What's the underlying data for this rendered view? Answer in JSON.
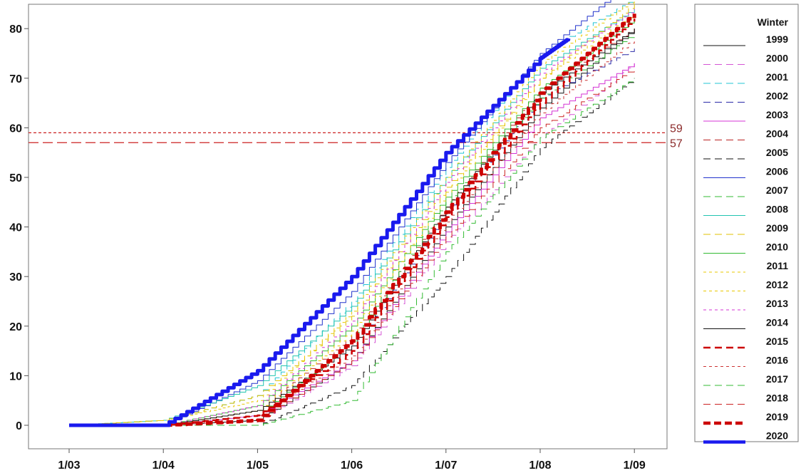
{
  "chart_data": {
    "type": "line",
    "title": "",
    "xlabel": "",
    "ylabel": "",
    "x_ticks": [
      "1/03",
      "1/04",
      "1/05",
      "1/06",
      "1/07",
      "1/08",
      "1/09"
    ],
    "y_ticks": [
      0,
      10,
      20,
      30,
      40,
      50,
      60,
      70,
      80
    ],
    "ylim": [
      -5,
      84
    ],
    "reference_lines": [
      {
        "value": 59,
        "label": "59",
        "color": "#cc2222",
        "dash": "short"
      },
      {
        "value": 57,
        "label": "57",
        "color": "#cc2222",
        "dash": "long"
      }
    ],
    "legend": {
      "title": "Winter",
      "position": "right"
    },
    "series": [
      {
        "name": "1999",
        "color": "#111111",
        "dash": "solid",
        "width": 1,
        "points": [
          [
            "1/03",
            0
          ],
          [
            "1/04",
            0
          ],
          [
            "1/05",
            1
          ],
          [
            "1/06",
            13
          ],
          [
            "1/07",
            40
          ],
          [
            "1/08",
            64
          ],
          [
            "1/09",
            80
          ]
        ]
      },
      {
        "name": "2000",
        "color": "#d455d4",
        "dash": "dashed",
        "width": 1,
        "points": [
          [
            "1/03",
            0
          ],
          [
            "1/04",
            0
          ],
          [
            "1/05",
            1
          ],
          [
            "1/06",
            12
          ],
          [
            "1/07",
            37
          ],
          [
            "1/08",
            58
          ],
          [
            "1/09",
            73
          ]
        ]
      },
      {
        "name": "2001",
        "color": "#22c4d4",
        "dash": "dashed",
        "width": 1,
        "points": [
          [
            "1/03",
            0
          ],
          [
            "1/04",
            1
          ],
          [
            "1/05",
            6
          ],
          [
            "1/06",
            25
          ],
          [
            "1/07",
            52
          ],
          [
            "1/08",
            75
          ],
          [
            "1/09",
            86
          ]
        ]
      },
      {
        "name": "2002",
        "color": "#2a2aa8",
        "dash": "dashed",
        "width": 1,
        "points": [
          [
            "1/03",
            0
          ],
          [
            "1/04",
            0
          ],
          [
            "1/05",
            2
          ],
          [
            "1/06",
            15
          ],
          [
            "1/07",
            43
          ],
          [
            "1/08",
            66
          ],
          [
            "1/09",
            76
          ]
        ]
      },
      {
        "name": "2003",
        "color": "#d433d4",
        "dash": "solid",
        "width": 1,
        "points": [
          [
            "1/03",
            0
          ],
          [
            "1/04",
            0
          ],
          [
            "1/05",
            2
          ],
          [
            "1/06",
            13
          ],
          [
            "1/07",
            39
          ],
          [
            "1/08",
            62
          ],
          [
            "1/09",
            73
          ]
        ]
      },
      {
        "name": "2004",
        "color": "#bb2222",
        "dash": "dashed",
        "width": 1,
        "points": [
          [
            "1/03",
            0
          ],
          [
            "1/04",
            0
          ],
          [
            "1/05",
            3
          ],
          [
            "1/06",
            18
          ],
          [
            "1/07",
            44
          ],
          [
            "1/08",
            68
          ],
          [
            "1/09",
            80
          ]
        ]
      },
      {
        "name": "2005",
        "color": "#111111",
        "dash": "dashed",
        "width": 1,
        "points": [
          [
            "1/03",
            0
          ],
          [
            "1/04",
            0
          ],
          [
            "1/05",
            0
          ],
          [
            "1/06",
            8
          ],
          [
            "1/07",
            30
          ],
          [
            "1/08",
            56
          ],
          [
            "1/09",
            70
          ]
        ]
      },
      {
        "name": "2006",
        "color": "#2233cc",
        "dash": "solid",
        "width": 1,
        "points": [
          [
            "1/03",
            0
          ],
          [
            "1/04",
            0
          ],
          [
            "1/05",
            9
          ],
          [
            "1/06",
            27
          ],
          [
            "1/07",
            53
          ],
          [
            "1/08",
            75
          ],
          [
            "1/09",
            90
          ]
        ]
      },
      {
        "name": "2007",
        "color": "#33bb33",
        "dash": "dashed",
        "width": 1,
        "points": [
          [
            "1/03",
            0
          ],
          [
            "1/04",
            0
          ],
          [
            "1/05",
            0
          ],
          [
            "1/06",
            5
          ],
          [
            "1/07",
            35
          ],
          [
            "1/08",
            58
          ],
          [
            "1/09",
            70
          ]
        ]
      },
      {
        "name": "2008",
        "color": "#22c4b0",
        "dash": "solid",
        "width": 1,
        "points": [
          [
            "1/03",
            0
          ],
          [
            "1/04",
            1
          ],
          [
            "1/05",
            8
          ],
          [
            "1/06",
            24
          ],
          [
            "1/07",
            50
          ],
          [
            "1/08",
            72
          ],
          [
            "1/09",
            84
          ]
        ]
      },
      {
        "name": "2009",
        "color": "#e0c000",
        "dash": "dashed",
        "width": 1,
        "points": [
          [
            "1/03",
            0
          ],
          [
            "1/04",
            1
          ],
          [
            "1/05",
            6
          ],
          [
            "1/06",
            22
          ],
          [
            "1/07",
            48
          ],
          [
            "1/08",
            70
          ],
          [
            "1/09",
            85
          ]
        ]
      },
      {
        "name": "2010",
        "color": "#33bb33",
        "dash": "solid",
        "width": 1,
        "points": [
          [
            "1/03",
            0
          ],
          [
            "1/04",
            0
          ],
          [
            "1/05",
            4
          ],
          [
            "1/06",
            20
          ],
          [
            "1/07",
            46
          ],
          [
            "1/08",
            68
          ],
          [
            "1/09",
            82
          ]
        ]
      },
      {
        "name": "2011",
        "color": "#e8c800",
        "dash": "dotted",
        "width": 1,
        "points": [
          [
            "1/03",
            0
          ],
          [
            "1/04",
            1
          ],
          [
            "1/05",
            5
          ],
          [
            "1/06",
            23
          ],
          [
            "1/07",
            50
          ],
          [
            "1/08",
            73
          ],
          [
            "1/09",
            86
          ]
        ]
      },
      {
        "name": "2012",
        "color": "#e8c800",
        "dash": "dotted",
        "width": 1,
        "points": [
          [
            "1/03",
            0
          ],
          [
            "1/04",
            0
          ],
          [
            "1/05",
            3
          ],
          [
            "1/06",
            19
          ],
          [
            "1/07",
            47
          ],
          [
            "1/08",
            70
          ],
          [
            "1/09",
            83
          ]
        ]
      },
      {
        "name": "2013",
        "color": "#d433d4",
        "dash": "dotted",
        "width": 1,
        "points": [
          [
            "1/03",
            0
          ],
          [
            "1/04",
            0
          ],
          [
            "1/05",
            4
          ],
          [
            "1/06",
            21
          ],
          [
            "1/07",
            49
          ],
          [
            "1/08",
            71
          ],
          [
            "1/09",
            84
          ]
        ]
      },
      {
        "name": "2014",
        "color": "#111111",
        "dash": "solid",
        "width": 1,
        "points": [
          [
            "1/03",
            0
          ],
          [
            "1/04",
            0
          ],
          [
            "1/05",
            3
          ],
          [
            "1/06",
            16
          ],
          [
            "1/07",
            44
          ],
          [
            "1/08",
            67
          ],
          [
            "1/09",
            80
          ]
        ]
      },
      {
        "name": "2015",
        "color": "#cc0000",
        "dash": "dashed",
        "width": 2.5,
        "points": [
          [
            "1/03",
            0
          ],
          [
            "1/04",
            0
          ],
          [
            "1/05",
            2
          ],
          [
            "1/06",
            15
          ],
          [
            "1/07",
            42
          ],
          [
            "1/08",
            65
          ],
          [
            "1/09",
            82
          ]
        ]
      },
      {
        "name": "2016",
        "color": "#cc3333",
        "dash": "dotted",
        "width": 1,
        "points": [
          [
            "1/03",
            0
          ],
          [
            "1/04",
            0
          ],
          [
            "1/05",
            2
          ],
          [
            "1/06",
            14
          ],
          [
            "1/07",
            41
          ],
          [
            "1/08",
            63
          ],
          [
            "1/09",
            78
          ]
        ]
      },
      {
        "name": "2017",
        "color": "#33bb33",
        "dash": "dashed",
        "width": 1,
        "points": [
          [
            "1/03",
            0
          ],
          [
            "1/04",
            0
          ],
          [
            "1/05",
            2
          ],
          [
            "1/06",
            17
          ],
          [
            "1/07",
            45
          ],
          [
            "1/08",
            66
          ],
          [
            "1/09",
            79
          ]
        ]
      },
      {
        "name": "2018",
        "color": "#cc2222",
        "dash": "dashed",
        "width": 1,
        "points": [
          [
            "1/03",
            0
          ],
          [
            "1/04",
            0
          ],
          [
            "1/05",
            1
          ],
          [
            "1/06",
            13
          ],
          [
            "1/07",
            38
          ],
          [
            "1/08",
            60
          ],
          [
            "1/09",
            72
          ]
        ]
      },
      {
        "name": "2019",
        "color": "#cc0000",
        "dash": "dotted",
        "width": 5,
        "points": [
          [
            "1/03",
            0
          ],
          [
            "1/04",
            0
          ],
          [
            "1/05",
            1
          ],
          [
            "1/06",
            17
          ],
          [
            "1/07",
            43
          ],
          [
            "1/08",
            67
          ],
          [
            "1/09",
            83
          ]
        ]
      },
      {
        "name": "2020",
        "color": "#1a1aee",
        "dash": "solid",
        "width": 5,
        "points": [
          [
            "1/03",
            0
          ],
          [
            "1/04",
            0
          ],
          [
            "1/05",
            11
          ],
          [
            "1/06",
            30
          ],
          [
            "1/07",
            55
          ],
          [
            "1/08",
            74
          ],
          [
            "1/08.3",
            78
          ]
        ]
      }
    ]
  }
}
